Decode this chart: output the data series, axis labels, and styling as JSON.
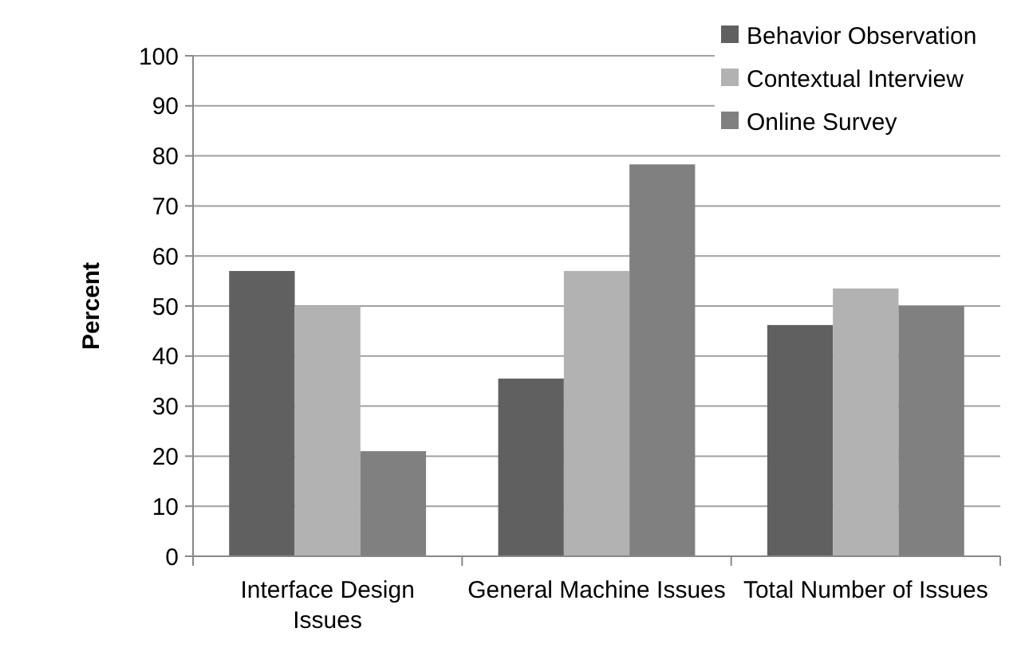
{
  "chart_data": {
    "type": "bar",
    "ylabel": "Percent",
    "categories": [
      "Interface Design Issues",
      "General Machine Issues",
      "Total Number of Issues"
    ],
    "series": [
      {
        "name": "Behavior Observation",
        "color": "#606060",
        "values": [
          57,
          35.5,
          46.2
        ]
      },
      {
        "name": "Contextual Interview",
        "color": "#b2b2b2",
        "values": [
          50,
          57,
          53.5
        ]
      },
      {
        "name": "Online Survey",
        "color": "#808080",
        "values": [
          21,
          78.3,
          50
        ]
      }
    ],
    "ylim": [
      0,
      100
    ],
    "yticks": [
      0,
      10,
      20,
      30,
      40,
      50,
      60,
      70,
      80,
      90,
      100
    ],
    "grid": "y",
    "legend": "top right"
  }
}
